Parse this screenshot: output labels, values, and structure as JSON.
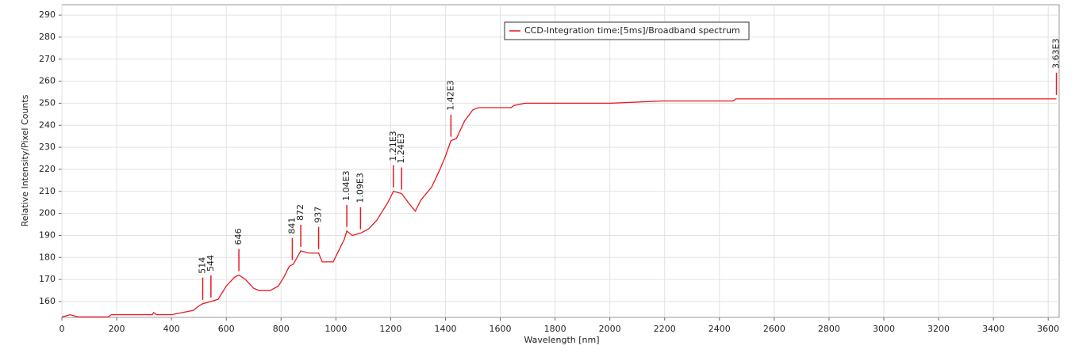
{
  "chart_data": {
    "type": "line",
    "xlabel": "Wavelength [nm]",
    "ylabel": "Relative Intensity/Pixel Counts",
    "legend": "upper center",
    "grid": true,
    "xlim": [
      0,
      3640
    ],
    "ylim": [
      152.8,
      294.7
    ],
    "xticks": [
      0,
      200,
      400,
      600,
      800,
      1000,
      1200,
      1400,
      1600,
      1800,
      2000,
      2200,
      2400,
      2600,
      2800,
      3000,
      3200,
      3400,
      3600
    ],
    "yticks": [
      160,
      170,
      180,
      190,
      200,
      210,
      220,
      230,
      240,
      250,
      260,
      270,
      280,
      290
    ],
    "series": [
      {
        "name": "CCD-Integration time:[5ms]/Broadband spectrum",
        "color": "#e8191e",
        "x": [
          0,
          30,
          60,
          170,
          180,
          330,
          335,
          345,
          400,
          440,
          480,
          500,
          514,
          544,
          570,
          600,
          630,
          646,
          670,
          700,
          720,
          760,
          790,
          810,
          830,
          845,
          872,
          900,
          937,
          950,
          990,
          1010,
          1030,
          1040,
          1060,
          1090,
          1120,
          1150,
          1190,
          1210,
          1240,
          1270,
          1290,
          1310,
          1350,
          1380,
          1400,
          1420,
          1440,
          1470,
          1500,
          1520,
          1640,
          1650,
          1690,
          2000,
          2190,
          2450,
          2460,
          3630
        ],
        "values": [
          153,
          154,
          153,
          153,
          154,
          154,
          155,
          154,
          154,
          155,
          156,
          158,
          159,
          160,
          161,
          167,
          171,
          172,
          170,
          166,
          165,
          165,
          167,
          171,
          176,
          177,
          183,
          182,
          182,
          178,
          178,
          183,
          188,
          192,
          190,
          191,
          193,
          197,
          205,
          210,
          209,
          204,
          201,
          206,
          212,
          220,
          226,
          233,
          234,
          242,
          247,
          248,
          248,
          249,
          250,
          250,
          251,
          251,
          252,
          252
        ]
      }
    ],
    "annotations": [
      {
        "x": 514,
        "y": 159,
        "label": "514"
      },
      {
        "x": 544,
        "y": 160,
        "label": "544"
      },
      {
        "x": 646,
        "y": 172,
        "label": "646"
      },
      {
        "x": 841,
        "y": 177,
        "label": "841"
      },
      {
        "x": 872,
        "y": 183,
        "label": "872"
      },
      {
        "x": 937,
        "y": 182,
        "label": "937"
      },
      {
        "x": 1040,
        "y": 192,
        "label": "1.04E3"
      },
      {
        "x": 1090,
        "y": 191,
        "label": "1.09E3"
      },
      {
        "x": 1210,
        "y": 210,
        "label": "1.21E3"
      },
      {
        "x": 1240,
        "y": 209,
        "label": "1.24E3"
      },
      {
        "x": 1420,
        "y": 233,
        "label": "1.42E3"
      },
      {
        "x": 3630,
        "y": 252,
        "label": "3.63E3"
      }
    ]
  }
}
